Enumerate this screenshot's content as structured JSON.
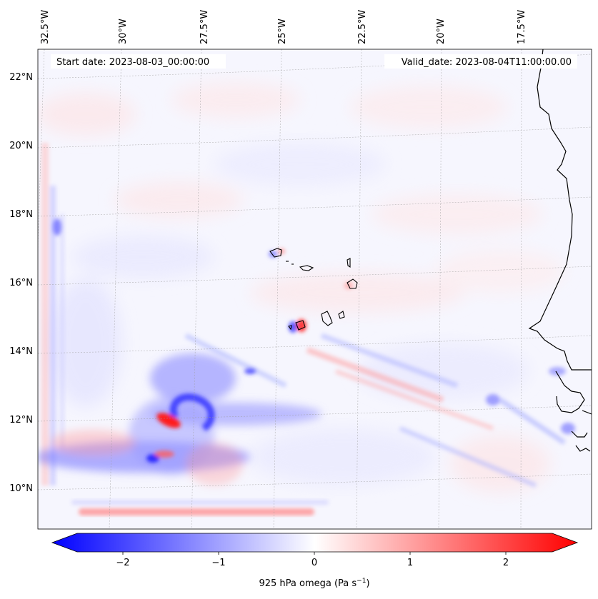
{
  "header": {
    "start_date": "Start date: 2023-08-03_00:00:00",
    "valid_date": "Valid_date: 2023-08-04T11:00:00.00"
  },
  "map": {
    "lon_labels": [
      "32.5°W",
      "30°W",
      "27.5°W",
      "25°W",
      "22.5°W",
      "20°W",
      "17.5°W"
    ],
    "lat_labels": [
      "22°N",
      "20°N",
      "18°N",
      "16°N",
      "14°N",
      "12°N",
      "10°N"
    ],
    "field": "925 hPa omega"
  },
  "colorbar": {
    "label": "925 hPa omega (Pa s",
    "label_sup": "−1",
    "label_close": ")",
    "ticks": [
      "−2",
      "−1",
      "0",
      "1",
      "2"
    ],
    "range": [
      -2.5,
      2.5
    ],
    "negative_color": "#0000ff",
    "neutral_color": "#ffffff",
    "positive_color": "#ff0000"
  }
}
